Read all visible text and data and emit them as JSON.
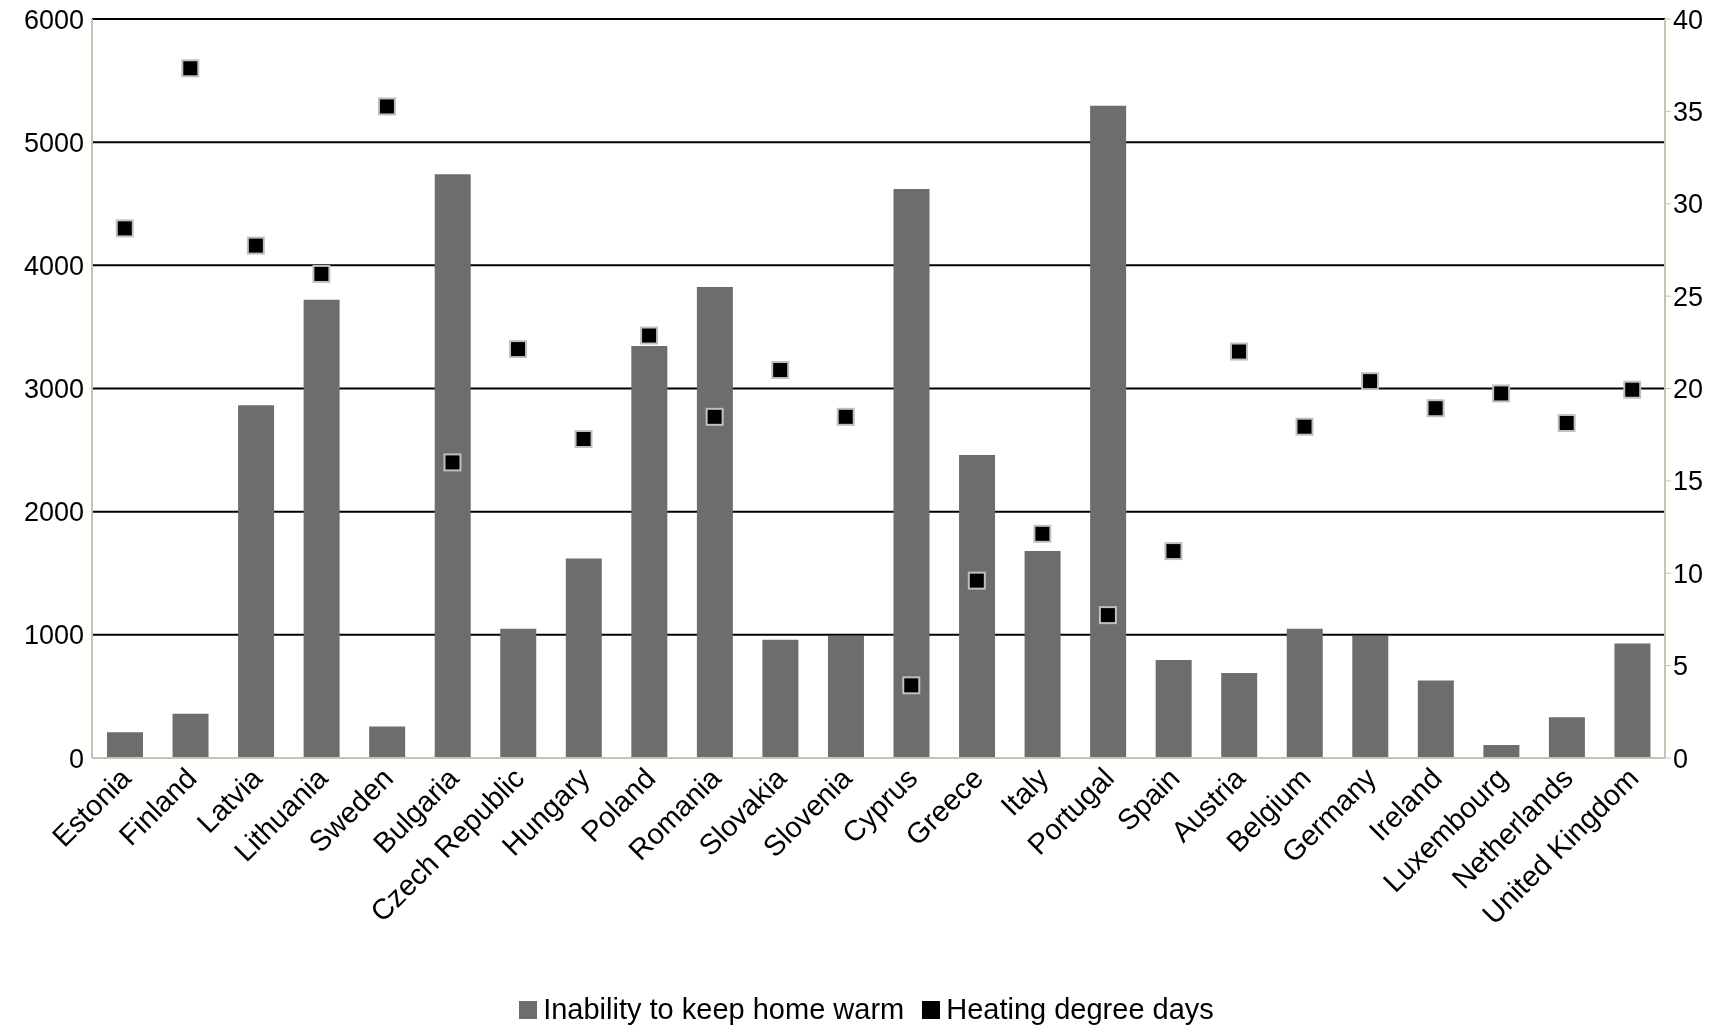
{
  "chart_data": {
    "type": "bar",
    "categories": [
      "Estonia",
      "Finland",
      "Latvia",
      "Lithuania",
      "Sweden",
      "Bulgaria",
      "Czech Republic",
      "Hungary",
      "Poland",
      "Romania",
      "Slovakia",
      "Slovenia",
      "Cyprus",
      "Greece",
      "Italy",
      "Portugal",
      "Spain",
      "Austria",
      "Belgium",
      "Germany",
      "Ireland",
      "Luxembourg",
      "Netherlands",
      "United Kingdom"
    ],
    "series": [
      {
        "name": "Inability to keep home warm",
        "axis": "y2",
        "color": "#6d6d6d",
        "values": [
          1.4,
          2.4,
          19.1,
          24.8,
          1.7,
          31.6,
          7.0,
          10.8,
          22.3,
          25.5,
          6.4,
          6.6,
          30.8,
          16.4,
          11.2,
          35.3,
          5.3,
          4.6,
          7.0,
          6.6,
          4.2,
          0.7,
          2.2,
          6.2
        ]
      },
      {
        "name": "Heating degree days",
        "type": "scatter",
        "color": "#000000",
        "marker": "square",
        "values": [
          4300,
          5600,
          4160,
          3930,
          5290,
          2400,
          3320,
          2590,
          3430,
          2770,
          3150,
          2770,
          590,
          1440,
          1820,
          1160,
          1680,
          3300,
          2690,
          3060,
          2840,
          2960,
          2720,
          2990
        ]
      }
    ],
    "ylim": [
      0,
      6000
    ],
    "yticks": [
      0,
      1000,
      2000,
      3000,
      4000,
      5000,
      6000
    ],
    "y2lim": [
      0,
      40
    ],
    "y2ticks": [
      0,
      5,
      10,
      15,
      20,
      25,
      30,
      35,
      40
    ],
    "grid": "y",
    "legend": "bottom"
  }
}
